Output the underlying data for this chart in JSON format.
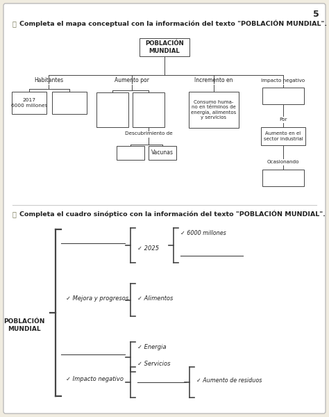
{
  "bg_color": "#f0ece0",
  "page_bg": "#ffffff",
  "title1": "Completa el mapa conceptual con la información del texto \"POBLACIÓN MUNDIAL\".",
  "title2": "Completa el cuadro sinóptico con la información del texto \"POBLACIÓN MUNDIAL\".",
  "page_number": "5",
  "line_color": "#444444",
  "text_color": "#222222",
  "box_color": "#ffffff",
  "font_size_title": 6.8,
  "font_size_small": 5.5,
  "font_size_box": 5.8
}
